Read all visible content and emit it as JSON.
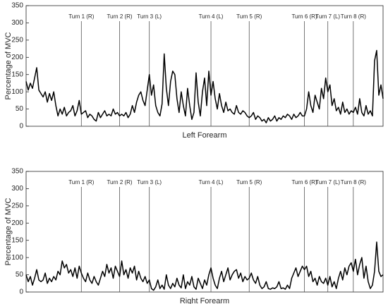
{
  "chart_data": [
    {
      "type": "line",
      "xlabel": "Left Forearm",
      "ylabel": "Percentage of MVC",
      "color": "#000000",
      "ylim": [
        0,
        350
      ],
      "yticks": [
        0,
        50,
        100,
        150,
        200,
        250,
        300,
        350
      ],
      "values": [
        130,
        105,
        125,
        110,
        140,
        170,
        105,
        95,
        85,
        100,
        70,
        95,
        75,
        100,
        60,
        30,
        50,
        35,
        55,
        30,
        40,
        45,
        60,
        30,
        45,
        75,
        35,
        40,
        45,
        25,
        35,
        30,
        20,
        15,
        40,
        25,
        35,
        45,
        30,
        35,
        30,
        50,
        35,
        40,
        30,
        35,
        30,
        40,
        25,
        35,
        60,
        40,
        70,
        90,
        100,
        75,
        60,
        105,
        150,
        90,
        120,
        60,
        40,
        30,
        65,
        210,
        110,
        60,
        130,
        160,
        150,
        80,
        40,
        100,
        60,
        30,
        110,
        60,
        20,
        40,
        155,
        70,
        30,
        100,
        140,
        60,
        160,
        90,
        130,
        80,
        50,
        95,
        60,
        40,
        70,
        45,
        50,
        40,
        35,
        60,
        40,
        35,
        45,
        40,
        30,
        25,
        30,
        40,
        20,
        30,
        25,
        15,
        20,
        10,
        25,
        15,
        20,
        30,
        15,
        25,
        20,
        30,
        25,
        35,
        30,
        20,
        35,
        25,
        30,
        40,
        30,
        30,
        50,
        100,
        60,
        40,
        90,
        70,
        50,
        110,
        80,
        140,
        100,
        120,
        60,
        80,
        45,
        55,
        35,
        70,
        40,
        50,
        35,
        45,
        40,
        55,
        35,
        80,
        40,
        30,
        60,
        35,
        45,
        30,
        190,
        220,
        90,
        120,
        80
      ],
      "annotations": [
        {
          "label": "Turn 1 (R)",
          "x": 26
        },
        {
          "label": "Turn 2 (R)",
          "x": 44
        },
        {
          "label": "Turn 3 (L)",
          "x": 58
        },
        {
          "label": "Turn 4 (L)",
          "x": 87
        },
        {
          "label": "Turn 5 (R)",
          "x": 105
        },
        {
          "label": "Turn 6 (R)",
          "x": 131
        },
        {
          "label": "Turn 7 (L)",
          "x": 142
        },
        {
          "label": "Turn 8 (R)",
          "x": 154
        }
      ]
    },
    {
      "type": "line",
      "xlabel": "Right Forearm",
      "ylabel": "Percentage of MVC",
      "color": "#000000",
      "ylim": [
        0,
        350
      ],
      "yticks": [
        0,
        50,
        100,
        150,
        200,
        250,
        300,
        350
      ],
      "values": [
        50,
        30,
        45,
        20,
        40,
        65,
        35,
        30,
        35,
        55,
        25,
        40,
        30,
        45,
        35,
        60,
        50,
        90,
        70,
        80,
        55,
        65,
        45,
        70,
        40,
        75,
        55,
        40,
        30,
        55,
        35,
        25,
        45,
        30,
        20,
        40,
        60,
        45,
        80,
        55,
        70,
        40,
        75,
        60,
        45,
        90,
        50,
        65,
        40,
        70,
        55,
        75,
        35,
        60,
        40,
        30,
        45,
        25,
        35,
        10,
        5,
        15,
        35,
        10,
        20,
        8,
        50,
        20,
        10,
        25,
        15,
        40,
        20,
        12,
        50,
        10,
        30,
        20,
        45,
        15,
        8,
        40,
        25,
        10,
        35,
        20,
        50,
        70,
        40,
        20,
        10,
        40,
        60,
        30,
        50,
        70,
        35,
        50,
        60,
        65,
        40,
        55,
        30,
        45,
        35,
        40,
        55,
        35,
        25,
        45,
        20,
        10,
        15,
        30,
        10,
        8,
        12,
        10,
        15,
        30,
        10,
        12,
        8,
        20,
        10,
        40,
        55,
        70,
        45,
        60,
        75,
        65,
        75,
        45,
        60,
        30,
        40,
        20,
        45,
        30,
        25,
        40,
        20,
        45,
        15,
        30,
        10,
        40,
        60,
        35,
        70,
        50,
        75,
        85,
        60,
        95,
        50,
        80,
        100,
        40,
        75,
        30,
        10,
        20,
        60,
        145,
        60,
        45,
        50
      ],
      "annotations": [
        {
          "label": "Turn 1 (R)",
          "x": 26
        },
        {
          "label": "Turn 2 (R)",
          "x": 44
        },
        {
          "label": "Turn 3 (L)",
          "x": 58
        },
        {
          "label": "Turn 4 (L)",
          "x": 87
        },
        {
          "label": "Turn 5 (R)",
          "x": 105
        },
        {
          "label": "Turn 6 (R)",
          "x": 131
        },
        {
          "label": "Turn 7 (L)",
          "x": 142
        },
        {
          "label": "Turn 8 (R)",
          "x": 154
        }
      ]
    }
  ]
}
